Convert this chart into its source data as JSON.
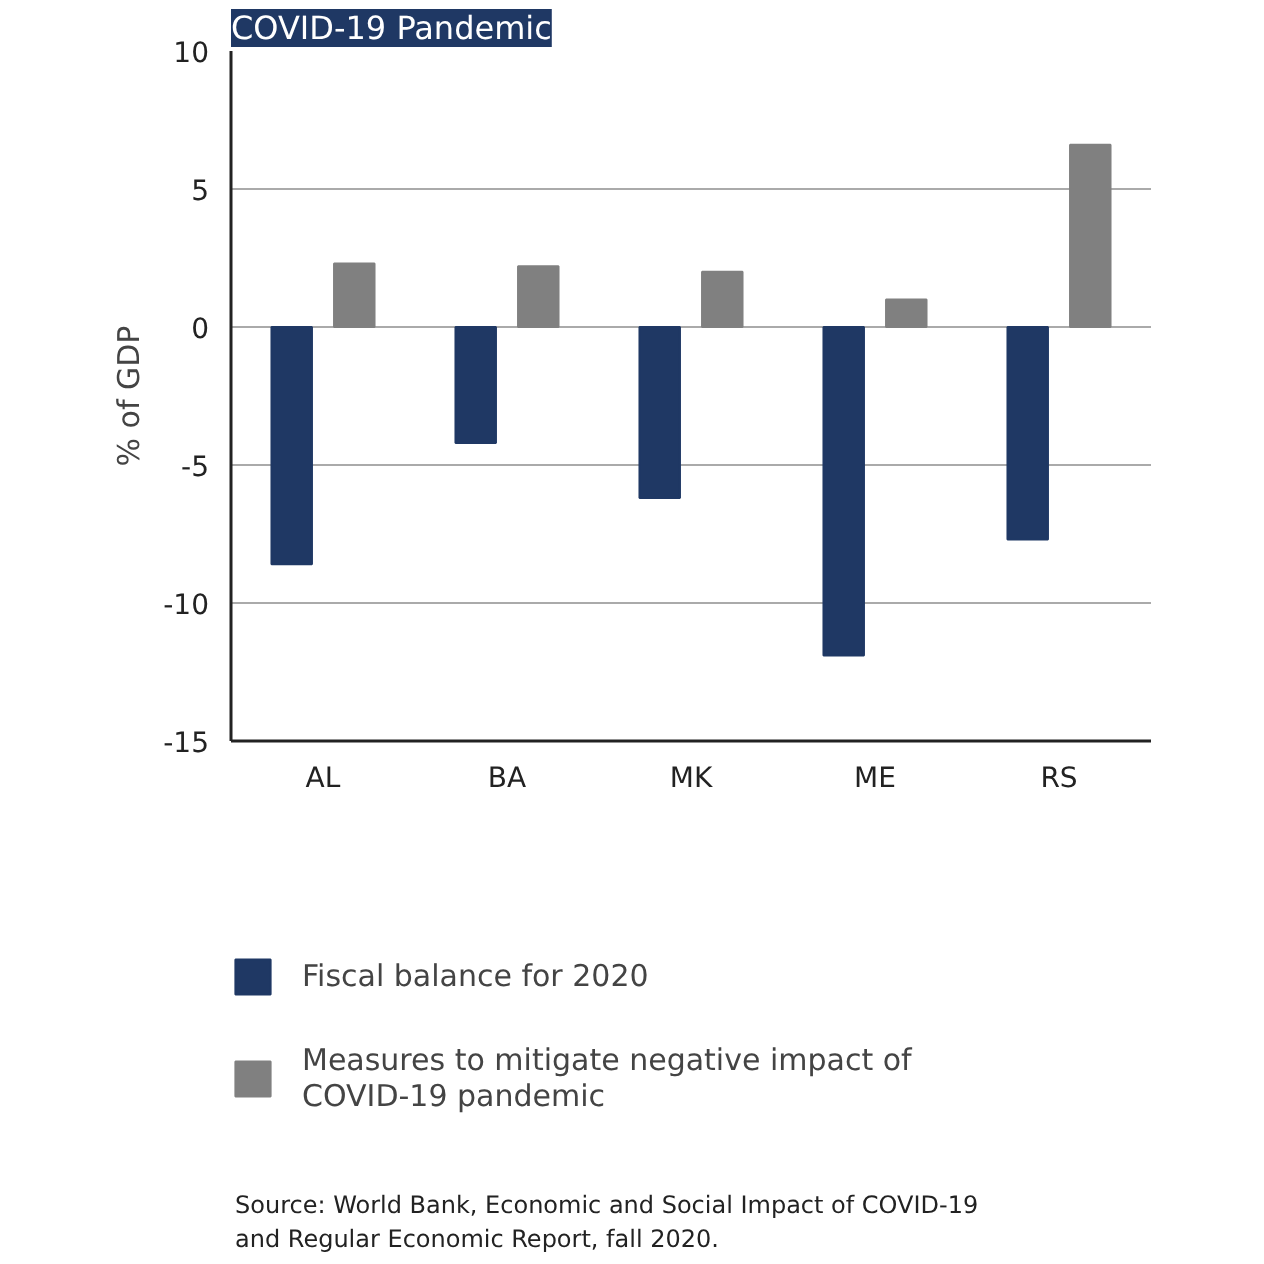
{
  "chart_data": {
    "type": "bar",
    "title": "COVID-19 Pandemic",
    "ylabel": "% of GDP",
    "categories": [
      "AL",
      "BA",
      "MK",
      "ME",
      "RS"
    ],
    "series": [
      {
        "name": "Fiscal balance for 2020",
        "color": "#1f3864",
        "values": [
          -8.6,
          -4.2,
          -6.2,
          -11.9,
          -7.7
        ]
      },
      {
        "name": "Measures to mitigate negative impact of  COVID-19 pandemic",
        "color": "#808080",
        "values": [
          2.3,
          2.2,
          2.0,
          1.0,
          6.6
        ]
      }
    ],
    "ylim": [
      -15,
      10
    ],
    "yticks": [
      -15,
      -10,
      -5,
      0,
      5,
      10
    ],
    "grid": "y",
    "legend": "bottom",
    "annotations": [
      "Source: World Bank, Economic and Social Impact of  COVID-19 and Regular Economic Report, fall 2020."
    ]
  }
}
